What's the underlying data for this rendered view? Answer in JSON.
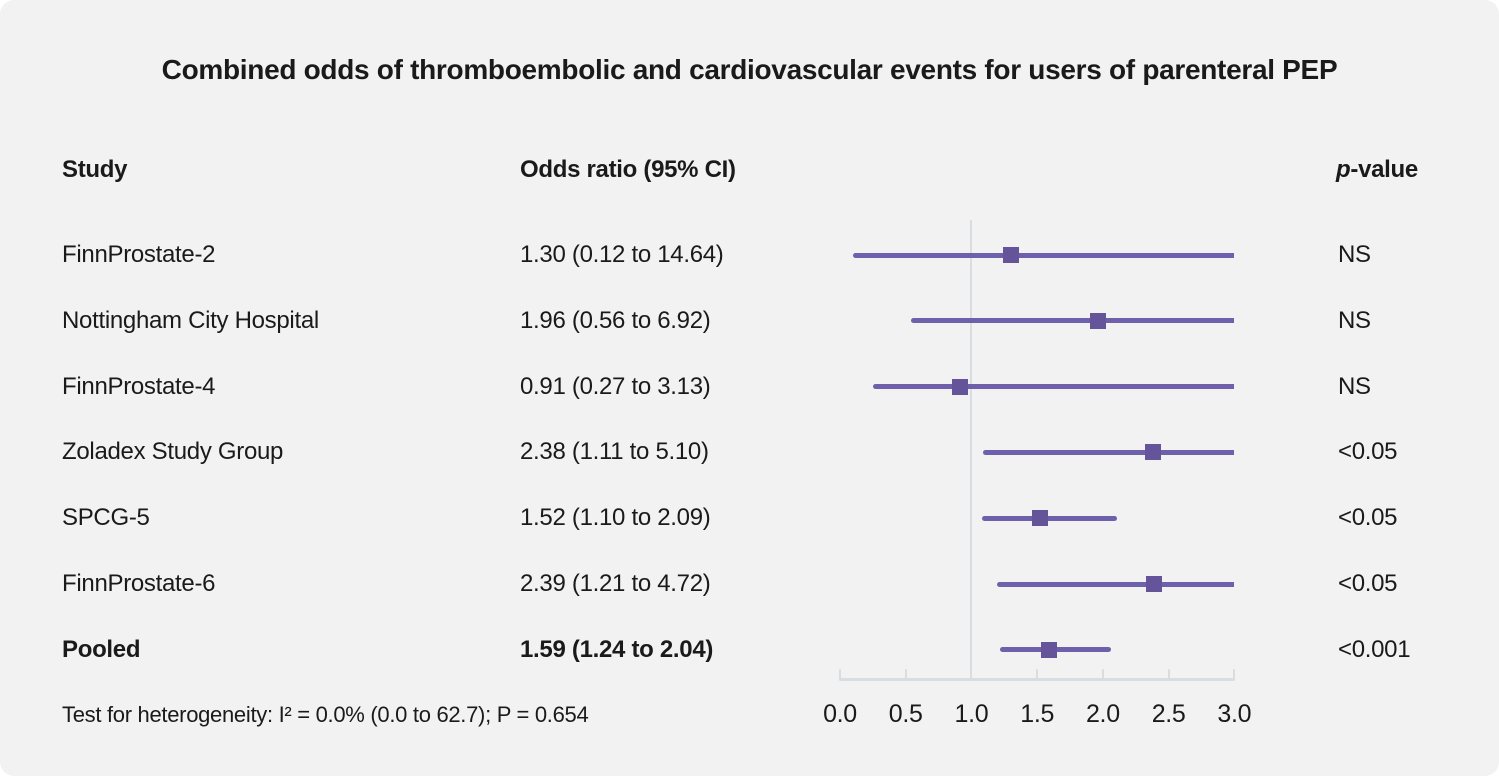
{
  "page": {
    "background": "#f2f2f2",
    "text_color": "#1a1a1a"
  },
  "chart_data": {
    "type": "forest",
    "title": "Combined odds of thromboembolic and cardiovascular events for users of parenteral PEP",
    "columns": {
      "study": "Study",
      "odds_ratio": "Odds ratio (95% CI)",
      "p_value_italic": "p",
      "p_value_rest": "-value"
    },
    "rows": [
      {
        "study": "FinnProstate-2",
        "or": 1.3,
        "ci_low": 0.12,
        "ci_high": 14.64,
        "or_label": "1.30 (0.12 to 14.64)",
        "p": "NS",
        "bold": false
      },
      {
        "study": "Nottingham City Hospital",
        "or": 1.96,
        "ci_low": 0.56,
        "ci_high": 6.92,
        "or_label": "1.96 (0.56 to 6.92)",
        "p": "NS",
        "bold": false
      },
      {
        "study": "FinnProstate-4",
        "or": 0.91,
        "ci_low": 0.27,
        "ci_high": 3.13,
        "or_label": "0.91 (0.27 to 3.13)",
        "p": "NS",
        "bold": false
      },
      {
        "study": "Zoladex Study Group",
        "or": 2.38,
        "ci_low": 1.11,
        "ci_high": 5.1,
        "or_label": "2.38 (1.11 to 5.10)",
        "p": "<0.05",
        "bold": false
      },
      {
        "study": "SPCG-5",
        "or": 1.52,
        "ci_low": 1.1,
        "ci_high": 2.09,
        "or_label": "1.52 (1.10 to 2.09)",
        "p": "<0.05",
        "bold": false
      },
      {
        "study": "FinnProstate-6",
        "or": 2.39,
        "ci_low": 1.21,
        "ci_high": 4.72,
        "or_label": "2.39 (1.21 to 4.72)",
        "p": "<0.05",
        "bold": false
      },
      {
        "study": "Pooled",
        "or": 1.59,
        "ci_low": 1.24,
        "ci_high": 2.04,
        "or_label": "1.59 (1.24 to 2.04)",
        "p": "<0.001",
        "bold": true
      }
    ],
    "axis": {
      "min": 0.0,
      "max": 3.0,
      "ticks": [
        "0.0",
        "0.5",
        "1.0",
        "1.5",
        "2.0",
        "2.5",
        "3.0"
      ],
      "tick_values": [
        0,
        0.5,
        1,
        1.5,
        2,
        2.5,
        3
      ],
      "reference_line": 1.0
    },
    "footnote": "Test for heterogeneity: I² = 0.0% (0.0 to 62.7); P = 0.654",
    "colors": {
      "ci_line": "#6f60ab",
      "marker": "#66549b",
      "axis": "#d8dde2"
    }
  }
}
